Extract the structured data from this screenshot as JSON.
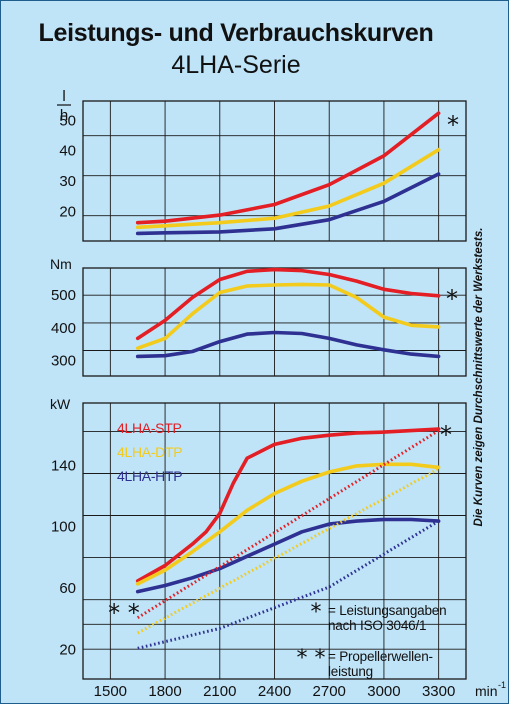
{
  "title": "Leistungs- und Verbrauchskurven",
  "subtitle": "4LHA-Serie",
  "side_note": "Die Kurven zeigen Durchschnittswerte der Werkstests.",
  "colors": {
    "background": "#bfe3f7",
    "grid": "#1a1a1a",
    "STP": "#e31e24",
    "DTP": "#f2cb1d",
    "HTP": "#2e3192"
  },
  "x_axis": {
    "ticks": [
      1500,
      1800,
      2100,
      2400,
      2700,
      3000,
      3300
    ],
    "unit": "min",
    "unit_exp": "-1"
  },
  "chart_data": [
    {
      "type": "line",
      "ylabel_num": "l",
      "ylabel_den": "h",
      "ylim": [
        10,
        56
      ],
      "yticks": [
        20,
        30,
        40,
        50
      ],
      "marker": "*",
      "series": [
        {
          "name": "4LHA-STP",
          "x": [
            1650,
            1800,
            2100,
            2400,
            2700,
            3000,
            3300
          ],
          "values": [
            16,
            16.5,
            18.5,
            22,
            28.5,
            38,
            52
          ]
        },
        {
          "name": "4LHA-DTP",
          "x": [
            1650,
            1800,
            2100,
            2400,
            2700,
            3000,
            3300
          ],
          "values": [
            14.5,
            15,
            16,
            17.5,
            21.5,
            29,
            40
          ]
        },
        {
          "name": "4LHA-HTP",
          "x": [
            1650,
            1800,
            2100,
            2400,
            2700,
            3000,
            3300
          ],
          "values": [
            12.5,
            12.7,
            13,
            14,
            17,
            23,
            32
          ]
        }
      ]
    },
    {
      "type": "line",
      "ylabel": "Nm",
      "ylim": [
        250,
        580
      ],
      "yticks": [
        300,
        400,
        500
      ],
      "marker": "*",
      "series": [
        {
          "name": "4LHA-STP",
          "x": [
            1650,
            1800,
            1950,
            2100,
            2250,
            2400,
            2550,
            2700,
            2850,
            3000,
            3150,
            3300
          ],
          "values": [
            365,
            420,
            490,
            545,
            570,
            575,
            572,
            560,
            540,
            515,
            502,
            495
          ]
        },
        {
          "name": "4LHA-DTP",
          "x": [
            1650,
            1800,
            1950,
            2100,
            2250,
            2400,
            2550,
            2700,
            2850,
            3000,
            3150,
            3300
          ],
          "values": [
            335,
            365,
            440,
            505,
            525,
            528,
            530,
            528,
            490,
            430,
            405,
            400
          ]
        },
        {
          "name": "4LHA-HTP",
          "x": [
            1650,
            1800,
            1950,
            2100,
            2250,
            2400,
            2550,
            2700,
            2850,
            3000,
            3150,
            3300
          ],
          "values": [
            310,
            312,
            325,
            355,
            378,
            383,
            380,
            365,
            345,
            330,
            317,
            310
          ]
        }
      ]
    },
    {
      "type": "line",
      "ylabel": "kW",
      "ylim": [
        0,
        180
      ],
      "yticks": [
        20,
        60,
        100,
        140
      ],
      "legend": [
        "4LHA-STP",
        "4LHA-DTP",
        "4LHA-HTP"
      ],
      "legend_position": "top-left",
      "marker": "*",
      "marker2": "* *",
      "series": [
        {
          "name": "4LHA-STP",
          "x": [
            1650,
            1800,
            1950,
            2025,
            2100,
            2175,
            2250,
            2400,
            2550,
            2700,
            2850,
            3000,
            3150,
            3300
          ],
          "values": [
            64,
            74,
            88,
            96,
            108,
            128,
            144,
            153,
            157,
            159,
            160.5,
            161,
            162,
            163
          ]
        },
        {
          "name": "4LHA-DTP",
          "x": [
            1650,
            1800,
            1950,
            2100,
            2250,
            2400,
            2550,
            2700,
            2850,
            3000,
            3150,
            3300
          ],
          "values": [
            62,
            71,
            83,
            96,
            110,
            121,
            129,
            135,
            139,
            140,
            140,
            138
          ]
        },
        {
          "name": "4LHA-HTP",
          "x": [
            1650,
            1800,
            1950,
            2100,
            2250,
            2400,
            2550,
            2700,
            2850,
            3000,
            3150,
            3300
          ],
          "values": [
            57,
            61,
            66,
            72,
            80,
            88,
            96,
            101,
            103,
            104,
            104,
            103
          ]
        },
        {
          "name": "4LHA-STP",
          "style": "dotted",
          "x": [
            1650,
            3300
          ],
          "values": [
            40,
            162
          ]
        },
        {
          "name": "4LHA-DTP",
          "style": "dotted",
          "x": [
            1650,
            3300
          ],
          "values": [
            30,
            137
          ]
        },
        {
          "name": "4LHA-HTP",
          "style": "dotted",
          "x": [
            1650,
            2100,
            2700,
            3300
          ],
          "values": [
            20,
            33,
            60,
            103
          ]
        }
      ],
      "notes": [
        {
          "symbol": "*",
          "text": [
            "= Leistungsangaben",
            "nach ISO 3046/1"
          ]
        },
        {
          "symbol": "* *",
          "text": [
            "= Propellerwellen-",
            "leistung"
          ]
        }
      ]
    }
  ]
}
